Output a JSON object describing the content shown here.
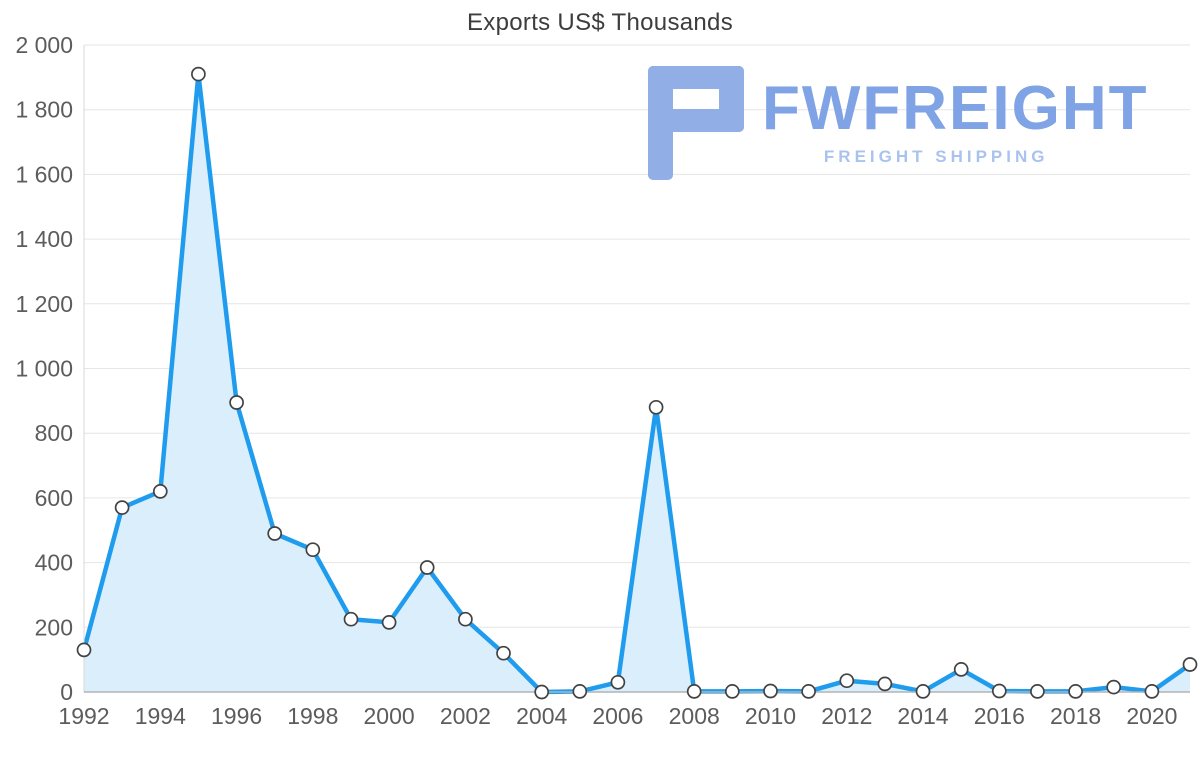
{
  "chart_data": {
    "type": "area",
    "title": "Exports US$ Thousands",
    "xlabel": "",
    "ylabel": "Exports US$ Thousands",
    "x": [
      1992,
      1993,
      1994,
      1995,
      1996,
      1997,
      1998,
      1999,
      2000,
      2001,
      2002,
      2003,
      2004,
      2005,
      2006,
      2007,
      2008,
      2009,
      2010,
      2011,
      2012,
      2013,
      2014,
      2015,
      2016,
      2017,
      2018,
      2019,
      2020,
      2021
    ],
    "values": [
      130,
      570,
      620,
      1910,
      895,
      490,
      440,
      225,
      215,
      385,
      225,
      120,
      0,
      2,
      30,
      880,
      2,
      2,
      3,
      2,
      35,
      25,
      2,
      70,
      3,
      2,
      2,
      15,
      2,
      85
    ],
    "ylim": [
      0,
      2000
    ],
    "yticks": [
      0,
      200,
      400,
      600,
      800,
      1000,
      1200,
      1400,
      1600,
      1800,
      2000
    ],
    "ytick_labels": [
      "0",
      "200",
      "400",
      "600",
      "800",
      "1 000",
      "1 200",
      "1 400",
      "1 600",
      "1 800",
      "2 000"
    ],
    "xticks": [
      1992,
      1994,
      1996,
      1998,
      2000,
      2002,
      2004,
      2006,
      2008,
      2010,
      2012,
      2014,
      2016,
      2018,
      2020
    ],
    "grid": "horizontal",
    "legend": "none",
    "line_color": "#1f9cee",
    "fill_color": "#dbeefc",
    "grid_color": "#e6e6e6",
    "axis_color": "#b3b3b3",
    "tick_color": "#5c5c5c",
    "marker_fill": "#ffffff",
    "marker_stroke": "#424242"
  },
  "watermark": {
    "brand": "FWFREIGHT",
    "tagline": "FREIGHT SHIPPING"
  }
}
